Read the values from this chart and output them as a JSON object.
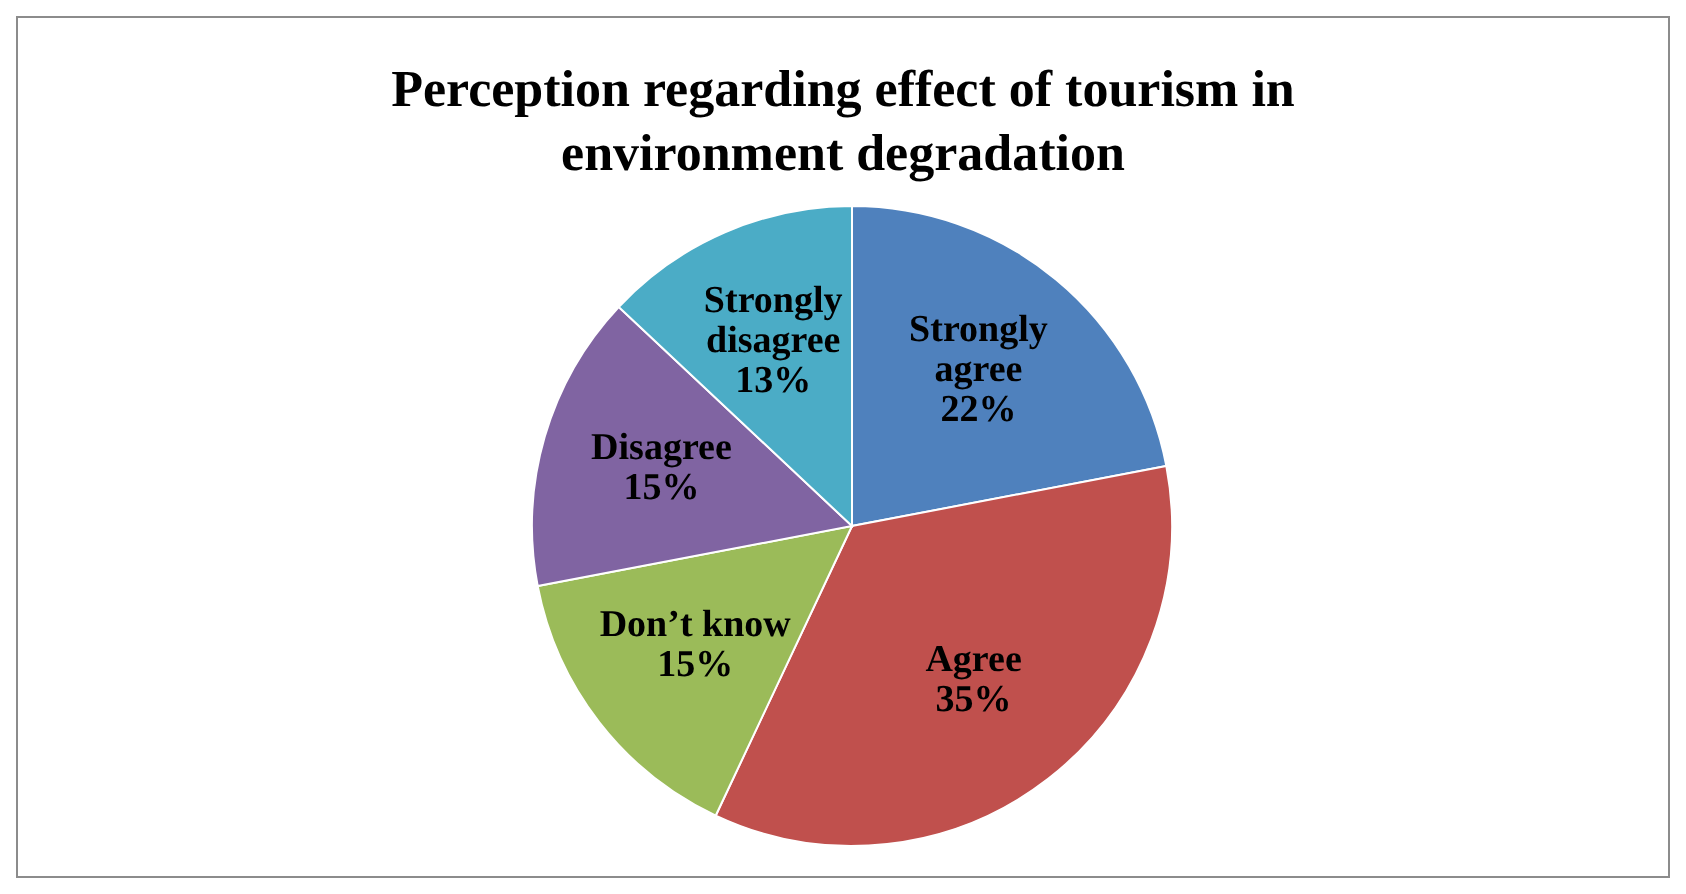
{
  "chart_data": {
    "type": "pie",
    "title": "Perception regarding effect of tourism in environment degradation",
    "categories": [
      "Strongly agree",
      "Agree",
      "Don’t know",
      "Disagree",
      "Strongly disagree"
    ],
    "values": [
      22,
      35,
      15,
      15,
      13
    ],
    "colors": [
      "#4f81bd",
      "#c0504d",
      "#9bbb59",
      "#8064a2",
      "#4bacc6"
    ],
    "value_labels": [
      "22%",
      "35%",
      "15%",
      "15%",
      "13%"
    ]
  }
}
